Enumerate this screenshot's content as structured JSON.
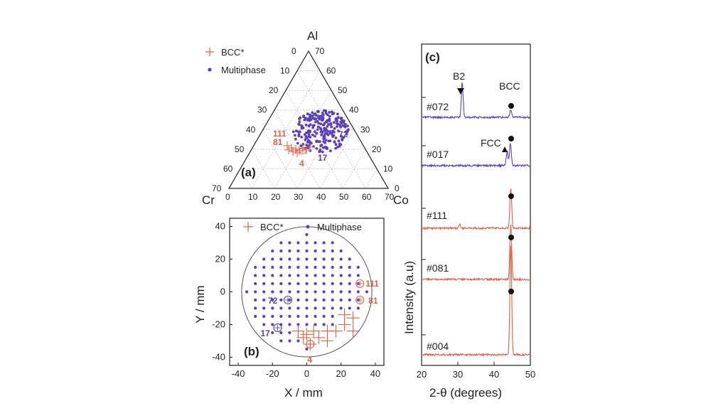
{
  "panels": {
    "a": {
      "label": "(a)",
      "vertices": {
        "top": "Al",
        "left": "Cr",
        "right": "Co"
      },
      "ticks": [
        0,
        10,
        20,
        30,
        40,
        50,
        60,
        70
      ],
      "legend": [
        {
          "name": "BCC*",
          "marker": "plus"
        },
        {
          "name": "Multiphase",
          "marker": "dot"
        }
      ],
      "annotations": [
        {
          "text": "111",
          "color": "#e06040"
        },
        {
          "text": "81",
          "color": "#e06040"
        },
        {
          "text": "4",
          "color": "#e06040"
        },
        {
          "text": "72",
          "color": "#5a3fc0"
        },
        {
          "text": "17",
          "color": "#5a3fc0"
        }
      ]
    },
    "b": {
      "label": "(b)",
      "xlabel": "X / mm",
      "ylabel": "Y / mm",
      "xlim": [
        -45,
        45
      ],
      "ylim": [
        -45,
        45
      ],
      "xticks": [
        -40,
        -20,
        0,
        20,
        40
      ],
      "yticks": [
        -40,
        -20,
        0,
        20,
        40
      ],
      "legend": [
        {
          "name": "BCC*",
          "marker": "plus"
        },
        {
          "name": "Multiphase",
          "marker": "dot"
        }
      ],
      "wafer_radius_mm": 38,
      "grid_step_mm": 5,
      "bcc_points": [
        [
          12,
          -24
        ],
        [
          17,
          -24
        ],
        [
          22,
          -20
        ],
        [
          27,
          -16
        ],
        [
          22,
          -14
        ],
        [
          27,
          -24
        ],
        [
          4,
          -24
        ],
        [
          0,
          -26
        ],
        [
          -5,
          -24
        ],
        [
          7,
          -28
        ],
        [
          12,
          -30
        ],
        [
          2,
          -32
        ],
        [
          -2,
          -28
        ]
      ],
      "circled": [
        [
          31,
          5,
          "111",
          "#e06040"
        ],
        [
          31,
          -5,
          "81",
          "#e06040"
        ],
        [
          -11,
          -5,
          "72",
          "#5a3fc0"
        ],
        [
          -17,
          -22,
          "17",
          "#5a3fc0"
        ],
        [
          2,
          -32,
          "4",
          "#e06040"
        ]
      ]
    },
    "c": {
      "label": "(c)",
      "xlabel": "2-θ (degrees)",
      "ylabel": "Intensity (a.u)",
      "xlim": [
        20,
        50
      ],
      "xticks": [
        20,
        30,
        40,
        50
      ],
      "peak_labels": {
        "b2": "B2",
        "bcc": "BCC",
        "fcc": "FCC"
      },
      "series": [
        {
          "name": "#072",
          "color": "#5a3fc0",
          "peaks": [
            {
              "x": 31.2,
              "h": 0.55
            },
            {
              "x": 44.6,
              "h": 0.12
            }
          ]
        },
        {
          "name": "#017",
          "color": "#5a3fc0",
          "peaks": [
            {
              "x": 43.6,
              "h": 0.22
            },
            {
              "x": 44.5,
              "h": 0.35
            }
          ]
        },
        {
          "name": "#111",
          "color": "#e06040",
          "peaks": [
            {
              "x": 30.5,
              "h": 0.06
            },
            {
              "x": 44.6,
              "h": 0.62
            }
          ]
        },
        {
          "name": "#081",
          "color": "#e06040",
          "peaks": [
            {
              "x": 44.6,
              "h": 0.85
            }
          ]
        },
        {
          "name": "#004",
          "color": "#e06040",
          "peaks": [
            {
              "x": 44.6,
              "h": 1.7
            }
          ]
        }
      ]
    }
  },
  "colors": {
    "bcc": "#e06040",
    "multi": "#5a3fc0",
    "axis": "#222222",
    "grid": "#bbbbbb"
  }
}
